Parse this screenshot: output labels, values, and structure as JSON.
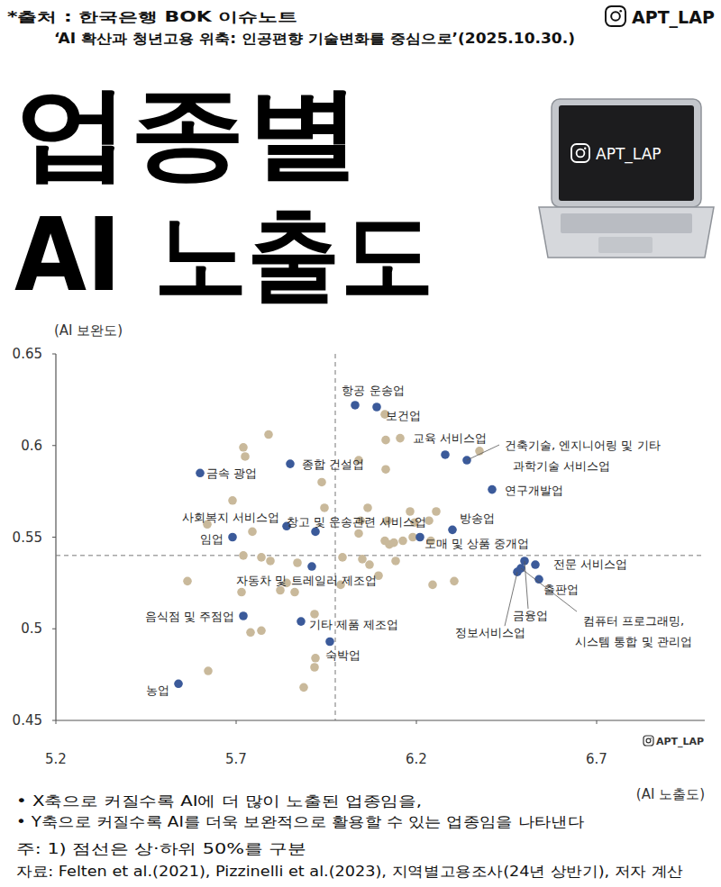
{
  "header": {
    "source_lines": [
      "*출처 : 한국은행 BOK 이슈노트",
      "‘AI 확산과 청년고용 위축: 인공편향 기술변화를 중심으로’(2025.10.30.)"
    ],
    "brand": "APT_LAP"
  },
  "chart_data": {
    "type": "scatter",
    "title": "업종별 AI 노출도",
    "xlabel": "(AI 노출도)",
    "ylabel": "(AI 보완도)",
    "xlim": [
      5.2,
      7.0
    ],
    "xticks": [
      5.2,
      5.7,
      6.2,
      6.7
    ],
    "ylim": [
      0.45,
      0.65
    ],
    "yticks": [
      0.45,
      0.5,
      0.55,
      0.6,
      0.65
    ],
    "x_ref": 5.975,
    "y_ref": 0.54,
    "series": [
      {
        "color": "#3b5a9a",
        "marker": "circle",
        "x": [
          6.03,
          6.09,
          6.28,
          6.34,
          6.41,
          5.85,
          5.6,
          6.3,
          5.92,
          5.84,
          6.21,
          5.69,
          5.91,
          6.53,
          6.54,
          6.5,
          6.48,
          6.49,
          5.72,
          5.88,
          5.96,
          5.54
        ],
        "values": [
          0.622,
          0.621,
          0.595,
          0.592,
          0.576,
          0.59,
          0.585,
          0.554,
          0.553,
          0.556,
          0.55,
          0.55,
          0.534,
          0.535,
          0.527,
          0.537,
          0.531,
          0.533,
          0.507,
          0.504,
          0.493,
          0.47
        ],
        "labels": [
          "항공 운송업",
          "보건업",
          "교육 서비스업",
          "건축기술, 엔지니어링 및 기타\n과학기술 서비스업",
          "연구개발업",
          "종합 건설업",
          "금속 광업",
          "방송업",
          "창고 및 운송관련 서비스업",
          "사회복지 서비스업",
          "도매 및 상품 중개업",
          "임업",
          "자동차 및 트레일러 제조업",
          "전문 서비스업",
          "출판업",
          "금융업",
          "정보서비스업",
          "컴퓨터 프로그래밍,\n시스템 통합 및 관리업",
          "음식점 및 주점업",
          "기타 제품 제조업",
          "숙박업",
          "농업"
        ]
      },
      {
        "color": "#c9b99b",
        "marker": "circle",
        "x": [
          5.72,
          5.725,
          5.79,
          5.69,
          5.62,
          5.745,
          5.77,
          5.795,
          5.72,
          5.565,
          5.715,
          5.8225,
          5.84,
          5.8625,
          5.87,
          5.74,
          5.6225,
          5.9175,
          5.92,
          5.9175,
          5.8875,
          5.9375,
          5.945,
          5.995,
          6.04,
          6.045,
          6.05,
          6.065,
          6.04,
          6.115,
          6.1125,
          6.155,
          6.115,
          6.12,
          6.1125,
          6.125,
          6.1375,
          6.1625,
          6.1825,
          6.195,
          6.19,
          6.235,
          6.255,
          6.24,
          6.1425,
          6.245,
          6.305,
          6.375,
          6.095,
          5.99,
          5.77,
          6.07
        ],
        "values": [
          0.599,
          0.594,
          0.606,
          0.57,
          0.557,
          0.553,
          0.539,
          0.537,
          0.54,
          0.526,
          0.52,
          0.521,
          0.525,
          0.52,
          0.536,
          0.498,
          0.477,
          0.508,
          0.484,
          0.479,
          0.468,
          0.58,
          0.566,
          0.539,
          0.552,
          0.559,
          0.538,
          0.566,
          0.592,
          0.603,
          0.617,
          0.604,
          0.587,
          0.559,
          0.548,
          0.546,
          0.547,
          0.548,
          0.564,
          0.558,
          0.55,
          0.559,
          0.564,
          0.548,
          0.537,
          0.524,
          0.526,
          0.597,
          0.529,
          0.524,
          0.499,
          0.535
        ]
      }
    ],
    "bullets": [
      "• X축으로 커질수록 AI에 더 많이 노출된 업종임을,",
      "• Y축으로 커질수록 AI를 더욱 보완적으로 활용할 수 있는 업종임을 나타낸다"
    ],
    "notes": [
      "주: 1) 점선은 상·하위 50%를 구분",
      "자료: Felten et al.(2021), Pizzinelli et al.(2023), 지역별고용조사(24년 상반기), 저자 계산"
    ]
  }
}
